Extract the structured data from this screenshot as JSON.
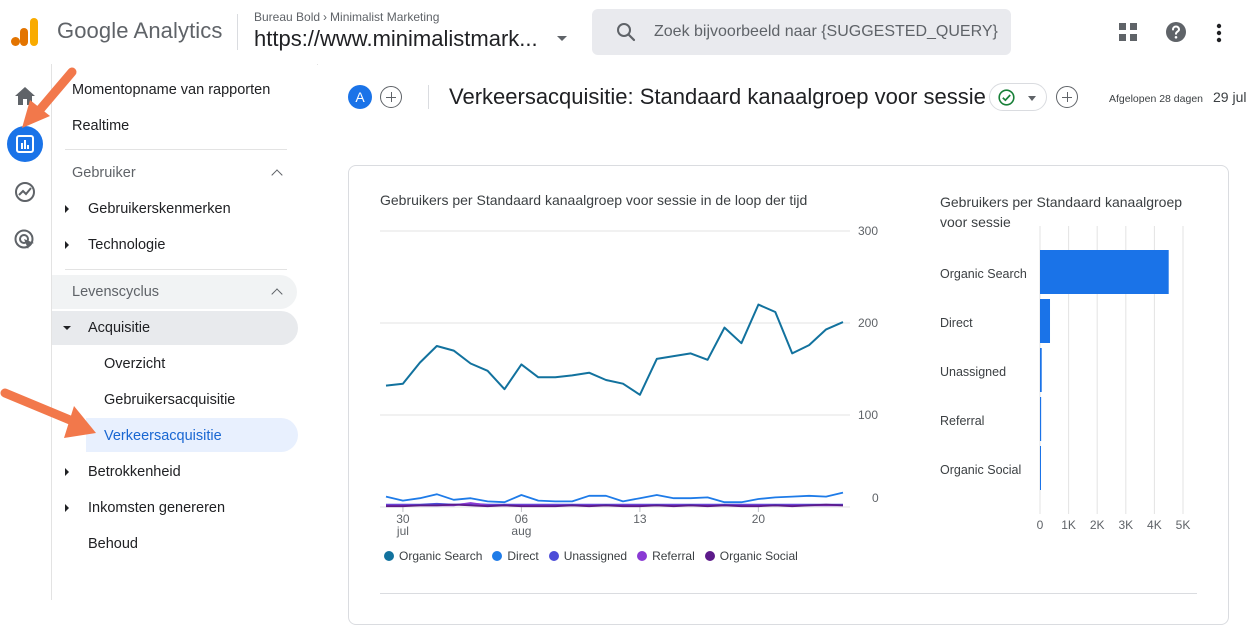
{
  "header": {
    "product_name": "Google Analytics",
    "account": "Bureau Bold",
    "account_sep": "›",
    "property_group": "Minimalist Marketing",
    "property": "https://www.minimalistmark...",
    "search_placeholder": "Zoek bijvoorbeeld naar {SUGGESTED_QUERY}"
  },
  "nav": {
    "top_items": [
      "Momentopname van rapporten",
      "Realtime"
    ],
    "section_gebruiker": "Gebruiker",
    "gebruiker_items": [
      "Gebruikerskenmerken",
      "Technologie"
    ],
    "section_levenscyclus": "Levenscyclus",
    "acquisitie": "Acquisitie",
    "acquisitie_children": [
      "Overzicht",
      "Gebruikersacquisitie",
      "Verkeersacquisitie"
    ],
    "other_items": [
      "Betrokkenheid",
      "Inkomsten genereren",
      "Behoud"
    ]
  },
  "report": {
    "avatar_letter": "A",
    "title": "Verkeersacquisitie: Standaard kanaalgroep voor sessie",
    "range_label": "Afgelopen 28 dagen",
    "range_date": "29 jul"
  },
  "colors": {
    "accent": "#1a73e8",
    "active_nav_bg": "#e8f0fe",
    "arrow": "#f2784b"
  },
  "chart_data": [
    {
      "type": "line",
      "title": "Gebruikers per Standaard kanaalgroep voor sessie in de loop der tijd",
      "x_ticks": [
        {
          "label": "30",
          "sub": "jul",
          "index": 1
        },
        {
          "label": "06",
          "sub": "aug",
          "index": 8
        },
        {
          "label": "13",
          "sub": "",
          "index": 15
        },
        {
          "label": "20",
          "sub": "",
          "index": 22
        }
      ],
      "y_ticks_upper": [
        300,
        200,
        100
      ],
      "y_ticks_lower": [
        0
      ],
      "series": [
        {
          "name": "Organic Search",
          "color": "#12729e",
          "values": [
            132,
            134,
            157,
            175,
            170,
            156,
            148,
            128,
            155,
            141,
            141,
            143,
            146,
            138,
            134,
            122,
            161,
            164,
            167,
            160,
            195,
            178,
            220,
            212,
            167,
            176,
            193,
            201
          ]
        },
        {
          "name": "Direct",
          "color": "#1e7be8",
          "values": [
            13,
            8,
            11,
            16,
            9,
            11,
            7,
            6,
            15,
            8,
            7,
            7,
            14,
            14,
            7,
            11,
            15,
            11,
            11,
            12,
            6,
            6,
            10,
            12,
            13,
            14,
            13,
            18
          ]
        },
        {
          "name": "Unassigned",
          "color": "#4c4cd8",
          "values": [
            3,
            3,
            3,
            4,
            3,
            4,
            3,
            3,
            3,
            3,
            3,
            3,
            3,
            3,
            3,
            3,
            3,
            3,
            3,
            3,
            3,
            3,
            3,
            3,
            3,
            3,
            3,
            3
          ]
        },
        {
          "name": "Referral",
          "color": "#8a3ad4",
          "values": [
            2,
            2,
            2,
            2,
            2,
            5,
            2,
            2,
            2,
            2,
            2,
            2,
            2,
            2,
            2,
            2,
            2,
            2,
            2,
            2,
            2,
            2,
            2,
            2,
            2,
            2,
            2,
            2
          ]
        },
        {
          "name": "Organic Social",
          "color": "#5c1a8a",
          "values": [
            1,
            1,
            2,
            2,
            3,
            2,
            1,
            2,
            1,
            1,
            1,
            2,
            1,
            2,
            1,
            1,
            2,
            1,
            2,
            1,
            2,
            1,
            1,
            2,
            1,
            2,
            3,
            2
          ]
        }
      ],
      "grid": true,
      "legend": "bottom"
    },
    {
      "type": "bar",
      "orientation": "horizontal",
      "title": "Gebruikers per Standaard kanaalgroep voor sessie",
      "categories": [
        "Organic Search",
        "Direct",
        "Unassigned",
        "Referral",
        "Organic Social"
      ],
      "values": [
        4500,
        350,
        60,
        40,
        10
      ],
      "x_ticks": [
        "0",
        "1K",
        "2K",
        "3K",
        "4K",
        "5K"
      ],
      "xlim": [
        0,
        5000
      ],
      "color": "#1a73e8"
    }
  ]
}
